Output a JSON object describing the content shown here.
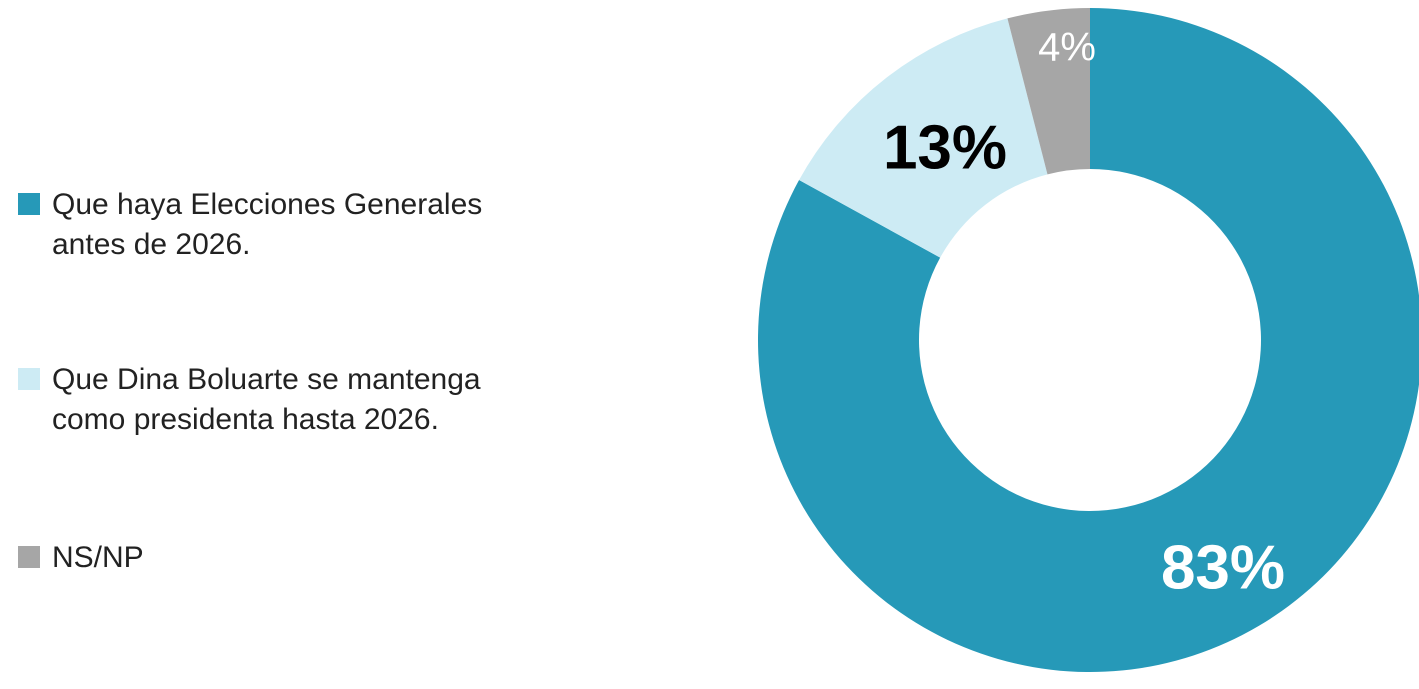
{
  "chart_data": {
    "type": "donut",
    "categories": [
      "Que haya Elecciones Generales antes de 2026.",
      "Que Dina Boluarte se mantenga como presidenta hasta 2026.",
      "NS/NP"
    ],
    "values": [
      83,
      13,
      4
    ],
    "value_labels": [
      "83%",
      "13%",
      "4%"
    ],
    "colors": [
      "#2699b8",
      "#cdebf4",
      "#a6a6a6"
    ],
    "legend": "left"
  }
}
